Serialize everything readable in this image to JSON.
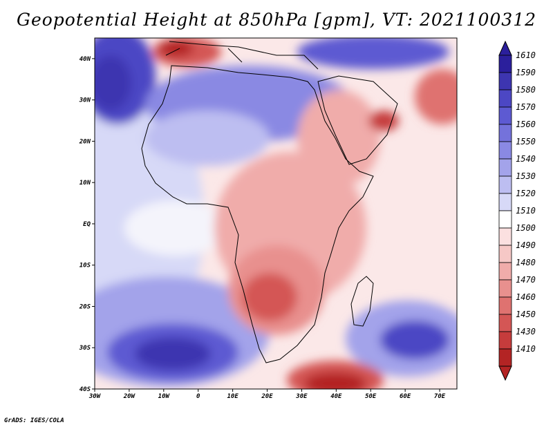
{
  "title": "Geopotential Height at 850hPa [gpm], VT: 2021100312",
  "credit": "GrADS: IGES/COLA",
  "map": {
    "variable": "Geopotential Height",
    "level": "850hPa",
    "units": "gpm",
    "valid_time": "2021100312",
    "lon_range": [
      -30,
      75
    ],
    "lat_range": [
      -40,
      45
    ],
    "lat_ticks": [
      {
        "value": 40,
        "label": "40N"
      },
      {
        "value": 30,
        "label": "30N"
      },
      {
        "value": 20,
        "label": "20N"
      },
      {
        "value": 10,
        "label": "10N"
      },
      {
        "value": 0,
        "label": "EQ"
      },
      {
        "value": -10,
        "label": "10S"
      },
      {
        "value": -20,
        "label": "20S"
      },
      {
        "value": -30,
        "label": "30S"
      },
      {
        "value": -40,
        "label": "40S"
      }
    ],
    "lon_ticks": [
      {
        "value": -30,
        "label": "30W"
      },
      {
        "value": -20,
        "label": "20W"
      },
      {
        "value": -10,
        "label": "10W"
      },
      {
        "value": 0,
        "label": "0"
      },
      {
        "value": 10,
        "label": "10E"
      },
      {
        "value": 20,
        "label": "20E"
      },
      {
        "value": 30,
        "label": "30E"
      },
      {
        "value": 40,
        "label": "40E"
      },
      {
        "value": 50,
        "label": "50E"
      },
      {
        "value": 60,
        "label": "60E"
      },
      {
        "value": 70,
        "label": "70E"
      }
    ]
  },
  "colorbar": {
    "levels": [
      {
        "label": "1610",
        "color": "#2b1f9c"
      },
      {
        "label": "1590",
        "color": "#3d35b0"
      },
      {
        "label": "1580",
        "color": "#4c47c4"
      },
      {
        "label": "1570",
        "color": "#5d5ad2"
      },
      {
        "label": "1560",
        "color": "#7472db"
      },
      {
        "label": "1550",
        "color": "#8a89e3"
      },
      {
        "label": "1540",
        "color": "#a3a3ea"
      },
      {
        "label": "1530",
        "color": "#bdbef1"
      },
      {
        "label": "1520",
        "color": "#d7d9f7"
      },
      {
        "label": "1510",
        "color": "#ffffff"
      },
      {
        "label": "1500",
        "color": "#fbe0e0"
      },
      {
        "label": "1490",
        "color": "#f6c8c6"
      },
      {
        "label": "1480",
        "color": "#f0acaa"
      },
      {
        "label": "1470",
        "color": "#e8908e"
      },
      {
        "label": "1460",
        "color": "#df7270"
      },
      {
        "label": "1450",
        "color": "#d45655"
      },
      {
        "label": "1430",
        "color": "#c63c3c"
      },
      {
        "label": "1410",
        "color": "#b32424"
      }
    ]
  }
}
